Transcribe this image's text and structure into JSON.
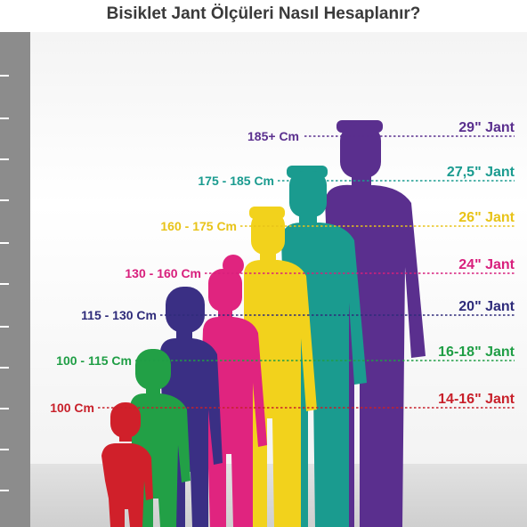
{
  "title": "Bisiklet Jant Ölçüleri Nasıl Hesaplanır?",
  "rows": [
    {
      "height_label": "185+ Cm",
      "rim_label": "29\" Jant",
      "color": "#5a2f8e"
    },
    {
      "height_label": "175 - 185 Cm",
      "rim_label": "27,5\" Jant",
      "color": "#1a9b8f"
    },
    {
      "height_label": "160 - 175 Cm",
      "rim_label": "26\" Jant",
      "color": "#e8c318"
    },
    {
      "height_label": "130 - 160 Cm",
      "rim_label": "24\" Jant",
      "color": "#d81e7c"
    },
    {
      "height_label": "115 - 130 Cm",
      "rim_label": "20\" Jant",
      "color": "#2e2b7a"
    },
    {
      "height_label": "100 - 115 Cm",
      "rim_label": "16-18\" Jant",
      "color": "#1f9e45"
    },
    {
      "height_label": "100 Cm",
      "rim_label": "14-16\" Jant",
      "color": "#c8202a"
    }
  ],
  "figure_colors": {
    "man_tall": "#5a2f8e",
    "man_teal": "#1a9b8f",
    "teen_yellow": "#f2d21c",
    "girl_pink": "#e0247f",
    "boy_navy": "#3a2f84",
    "child_green": "#22a046",
    "toddler_red": "#d0202a"
  }
}
